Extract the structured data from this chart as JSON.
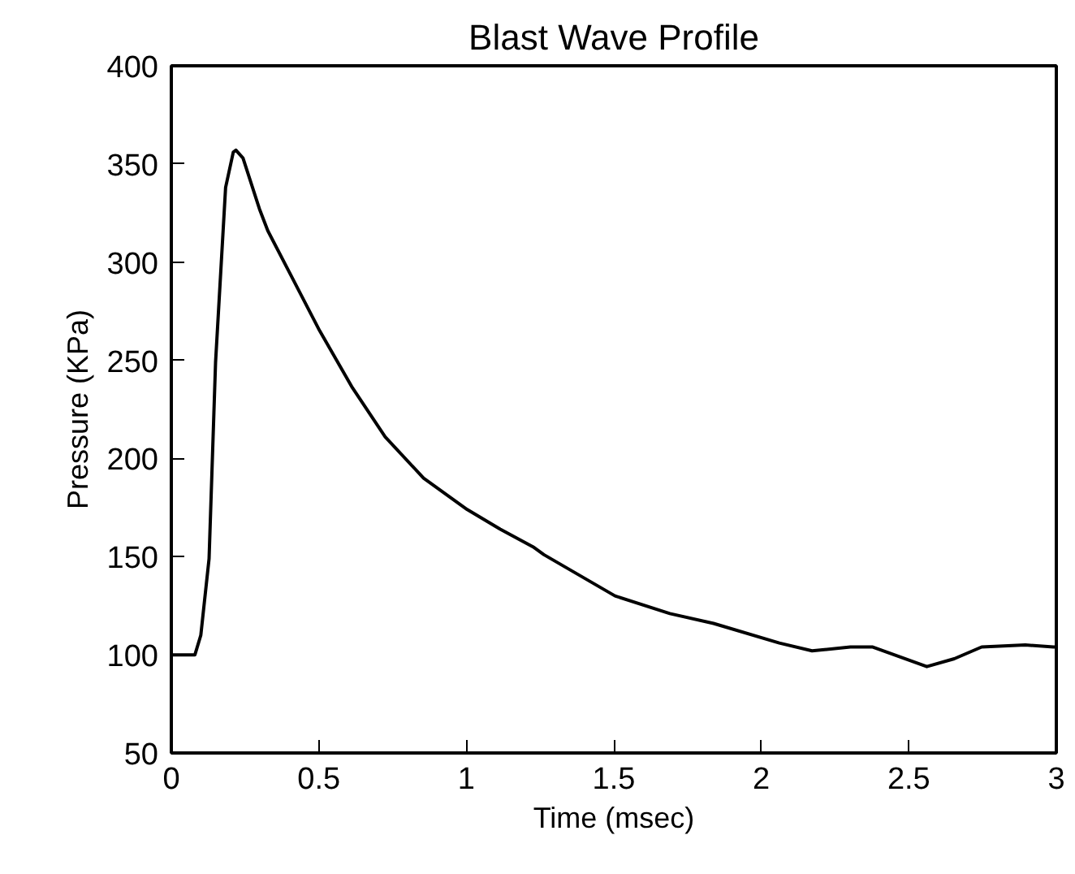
{
  "chart_data": {
    "type": "line",
    "title": "Blast Wave Profile",
    "xlabel": "Time (msec)",
    "ylabel": "Pressure (KPa)",
    "xlim": [
      0,
      3
    ],
    "ylim": [
      50,
      400
    ],
    "xticks": [
      0,
      0.5,
      1,
      1.5,
      2,
      2.5,
      3
    ],
    "yticks": [
      50,
      100,
      150,
      200,
      250,
      300,
      350,
      400
    ],
    "grid": false,
    "series": [
      {
        "color": "#000000",
        "x": [
          0,
          0.04,
          0.08,
          0.1,
          0.128,
          0.15,
          0.184,
          0.21,
          0.219,
          0.243,
          0.299,
          0.327,
          0.41,
          0.503,
          0.614,
          0.725,
          0.855,
          1.003,
          1.115,
          1.226,
          1.263,
          1.504,
          1.69,
          1.838,
          2.061,
          2.172,
          2.302,
          2.376,
          2.561,
          2.654,
          2.747,
          2.895,
          2.99,
          3
        ],
        "values": [
          100,
          100,
          100,
          110,
          149,
          249,
          338,
          356,
          357,
          353,
          327,
          316,
          292,
          265,
          236,
          211,
          190,
          174,
          164,
          155,
          151,
          130,
          121,
          116,
          106,
          102,
          104,
          104,
          94,
          98,
          104,
          105,
          104,
          104
        ]
      }
    ]
  }
}
